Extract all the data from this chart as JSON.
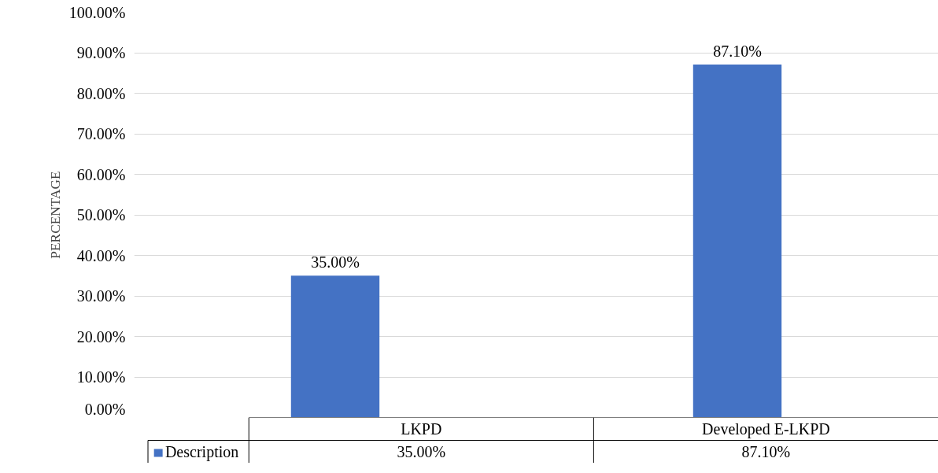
{
  "chart_data": {
    "type": "bar",
    "ylabel": "PERCENTAGE",
    "categories": [
      "LKPD",
      "Developed E-LKPD"
    ],
    "series": [
      {
        "name": "Description",
        "color": "#4472c4",
        "values": [
          35.0,
          87.1
        ],
        "value_labels": [
          "35.00%",
          "87.10%"
        ]
      }
    ],
    "ylim": [
      0,
      100
    ],
    "yticks": [
      {
        "value": 0,
        "label": "0.00%"
      },
      {
        "value": 10,
        "label": "10.00%"
      },
      {
        "value": 20,
        "label": "20.00%"
      },
      {
        "value": 30,
        "label": "30.00%"
      },
      {
        "value": 40,
        "label": "40.00%"
      },
      {
        "value": 50,
        "label": "50.00%"
      },
      {
        "value": 60,
        "label": "60.00%"
      },
      {
        "value": 70,
        "label": "70.00%"
      },
      {
        "value": 80,
        "label": "80.00%"
      },
      {
        "value": 90,
        "label": "90.00%"
      },
      {
        "value": 100,
        "label": "100.00%"
      }
    ],
    "grid": "y",
    "legend": "bottom"
  }
}
